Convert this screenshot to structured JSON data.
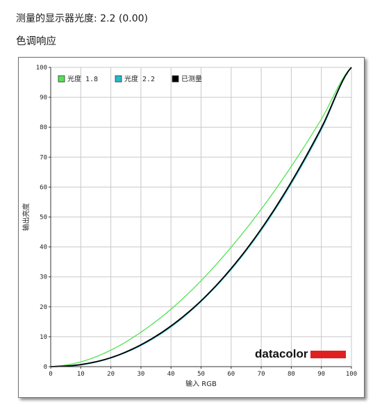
{
  "header": {
    "gamma_line": "测量的显示器光度:  2.2 (0.00)",
    "section_title": "色调响应"
  },
  "logo": {
    "text": "datacolor",
    "bar_color": "#e02020"
  },
  "colors": {
    "gamma18": "#52e252",
    "gamma22": "#28b9c8",
    "measured": "#000000",
    "grid": "#c8c8c8"
  },
  "chart_data": {
    "type": "line",
    "xlabel": "输入 RGB",
    "ylabel": "输出亮度",
    "xlim": [
      0,
      100
    ],
    "ylim": [
      0,
      100
    ],
    "xticks": [
      0,
      10,
      20,
      30,
      40,
      50,
      60,
      70,
      80,
      90,
      100
    ],
    "yticks": [
      0,
      10,
      20,
      30,
      40,
      50,
      60,
      70,
      80,
      90,
      100
    ],
    "grid": true,
    "legend_position": "top-left",
    "x": [
      0,
      10,
      20,
      30,
      40,
      50,
      60,
      70,
      80,
      90,
      100
    ],
    "series": [
      {
        "name": "光度 1.8",
        "color": "#52e252",
        "values": [
          0,
          1.6,
          5.5,
          11.5,
          19.2,
          28.7,
          39.9,
          52.6,
          66.9,
          82.7,
          100
        ]
      },
      {
        "name": "光度 2.2",
        "color": "#28b9c8",
        "values": [
          0,
          0.6,
          2.9,
          7.1,
          13.3,
          21.8,
          32.5,
          45.6,
          61.2,
          79.3,
          100
        ]
      },
      {
        "name": "已测量",
        "color": "#000000",
        "values": [
          0,
          0.7,
          3.0,
          7.3,
          13.6,
          22.0,
          32.8,
          46.0,
          61.7,
          79.8,
          100
        ]
      }
    ]
  }
}
